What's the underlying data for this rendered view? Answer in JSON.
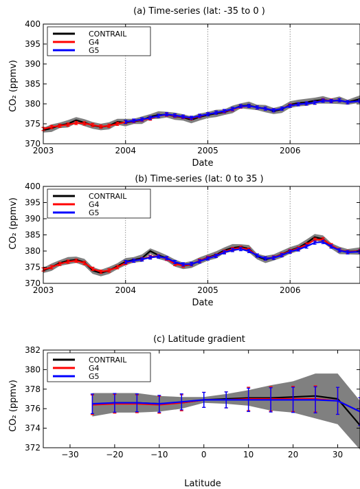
{
  "chart_data": [
    {
      "type": "line",
      "title": "(a) Time-series (lat: -35 to 0 )",
      "xlabel": "Date",
      "ylabel": "CO₂ (ppmv)",
      "xlim": [
        2003.0,
        2006.85
      ],
      "ylim": [
        370,
        400
      ],
      "xticks": [
        "2003",
        "2004",
        "2005",
        "2006"
      ],
      "yticks": [
        370,
        375,
        380,
        385,
        390,
        395,
        400
      ],
      "vlines": [
        2004,
        2005,
        2006
      ],
      "legend": "top-left",
      "legend_entries": [
        "CONTRAIL",
        "G4",
        "G5"
      ],
      "colors": {
        "CONTRAIL": "#000000",
        "G4": "#ff0000",
        "G5": "#0000ff",
        "band": "#808080"
      },
      "series": [
        {
          "name": "CONTRAIL",
          "x": [
            2003.0,
            2003.1,
            2003.2,
            2003.3,
            2003.4,
            2003.5,
            2003.6,
            2003.7,
            2003.8,
            2003.9,
            2004.0,
            2004.1,
            2004.2,
            2004.3,
            2004.4,
            2004.5,
            2004.6,
            2004.7,
            2004.8,
            2004.9,
            2005.0,
            2005.1,
            2005.2,
            2005.3,
            2005.4,
            2005.5,
            2005.6,
            2005.7,
            2005.8,
            2005.9,
            2006.0,
            2006.1,
            2006.2,
            2006.3,
            2006.4,
            2006.5,
            2006.6,
            2006.7,
            2006.85
          ],
          "y": [
            373.4,
            373.9,
            374.6,
            375.0,
            375.9,
            375.3,
            374.6,
            374.2,
            374.5,
            375.5,
            375.3,
            375.6,
            375.9,
            376.8,
            377.2,
            377.3,
            376.9,
            376.6,
            376.0,
            376.7,
            377.2,
            377.6,
            377.9,
            378.6,
            379.5,
            379.6,
            379.1,
            378.8,
            378.2,
            378.6,
            379.8,
            380.2,
            380.4,
            380.8,
            381.0,
            380.7,
            380.9,
            380.4,
            381.2
          ]
        },
        {
          "name": "G4",
          "x": [
            2003.0,
            2003.1,
            2003.2,
            2003.3,
            2003.4,
            2003.5,
            2003.6,
            2003.7,
            2003.8,
            2003.9,
            2004.0,
            2004.1,
            2004.2,
            2004.3,
            2004.4,
            2004.5,
            2004.6,
            2004.7,
            2004.8,
            2004.9,
            2005.0,
            2005.1,
            2005.2,
            2005.3,
            2005.4,
            2005.5,
            2005.6,
            2005.7,
            2005.8,
            2005.9,
            2006.0,
            2006.1,
            2006.2,
            2006.3,
            2006.4,
            2006.5,
            2006.6,
            2006.7,
            2006.85
          ],
          "y": [
            373.7,
            374.2,
            374.5,
            374.8,
            375.2,
            375.1,
            374.7,
            374.3,
            374.5,
            375.0,
            375.4,
            375.7,
            376.0,
            376.3,
            377.0,
            377.3,
            377.0,
            376.7,
            376.4,
            376.9,
            377.4,
            377.8,
            378.1,
            378.6,
            379.3,
            379.5,
            379.1,
            378.8,
            378.4,
            378.8,
            379.6,
            379.9,
            380.1,
            380.3,
            380.9,
            380.8,
            380.9,
            380.4,
            380.7
          ]
        },
        {
          "name": "G5",
          "x": [
            2004.0,
            2004.1,
            2004.2,
            2004.3,
            2004.4,
            2004.5,
            2004.6,
            2004.7,
            2004.8,
            2004.9,
            2005.0,
            2005.1,
            2005.2,
            2005.3,
            2005.4,
            2005.5,
            2005.6,
            2005.7,
            2005.8,
            2005.9,
            2006.0,
            2006.1,
            2006.2,
            2006.3,
            2006.4,
            2006.5,
            2006.6,
            2006.7,
            2006.85
          ],
          "y": [
            375.5,
            375.8,
            376.1,
            376.5,
            377.0,
            377.4,
            377.1,
            376.8,
            376.5,
            377.0,
            377.4,
            377.8,
            378.2,
            378.7,
            379.4,
            379.5,
            379.1,
            378.8,
            378.4,
            378.8,
            379.5,
            379.9,
            380.1,
            380.3,
            380.8,
            380.7,
            380.9,
            380.4,
            380.7
          ]
        }
      ]
    },
    {
      "type": "line",
      "title": "(b) Time-series (lat: 0 to 35 )",
      "xlabel": "Date",
      "ylabel": "CO₂ (ppmv)",
      "xlim": [
        2003.0,
        2006.85
      ],
      "ylim": [
        370,
        400
      ],
      "xticks": [
        "2003",
        "2004",
        "2005",
        "2006"
      ],
      "yticks": [
        370,
        375,
        380,
        385,
        390,
        395,
        400
      ],
      "vlines": [
        2004,
        2005,
        2006
      ],
      "legend": "top-left",
      "legend_entries": [
        "CONTRAIL",
        "G4",
        "G5"
      ],
      "colors": {
        "CONTRAIL": "#000000",
        "G4": "#ff0000",
        "G5": "#0000ff",
        "band": "#808080"
      },
      "series": [
        {
          "name": "CONTRAIL",
          "x": [
            2003.0,
            2003.1,
            2003.2,
            2003.3,
            2003.4,
            2003.5,
            2003.6,
            2003.7,
            2003.8,
            2003.9,
            2004.0,
            2004.1,
            2004.2,
            2004.3,
            2004.4,
            2004.5,
            2004.6,
            2004.7,
            2004.8,
            2004.9,
            2005.0,
            2005.1,
            2005.2,
            2005.3,
            2005.4,
            2005.5,
            2005.6,
            2005.7,
            2005.8,
            2005.9,
            2006.0,
            2006.1,
            2006.2,
            2006.3,
            2006.4,
            2006.5,
            2006.6,
            2006.7,
            2006.85
          ],
          "y": [
            374.0,
            375.0,
            376.3,
            377.0,
            377.3,
            376.5,
            374.0,
            373.2,
            374.0,
            375.3,
            376.7,
            377.3,
            377.8,
            380.0,
            378.7,
            377.8,
            376.3,
            375.4,
            375.8,
            377.0,
            378.0,
            378.8,
            380.2,
            381.0,
            381.3,
            380.7,
            378.3,
            377.4,
            378.0,
            379.0,
            380.2,
            381.0,
            382.5,
            384.3,
            383.7,
            381.6,
            380.2,
            379.8,
            380.0
          ]
        },
        {
          "name": "G4",
          "x": [
            2003.0,
            2003.1,
            2003.2,
            2003.3,
            2003.4,
            2003.5,
            2003.6,
            2003.7,
            2003.8,
            2003.9,
            2004.0,
            2004.1,
            2004.2,
            2004.3,
            2004.4,
            2004.5,
            2004.6,
            2004.7,
            2004.8,
            2004.9,
            2005.0,
            2005.1,
            2005.2,
            2005.3,
            2005.4,
            2005.5,
            2005.6,
            2005.7,
            2005.8,
            2005.9,
            2006.0,
            2006.1,
            2006.2,
            2006.3,
            2006.4,
            2006.5,
            2006.6,
            2006.7,
            2006.85
          ],
          "y": [
            374.3,
            375.0,
            376.0,
            376.7,
            377.0,
            376.3,
            374.5,
            373.6,
            374.0,
            375.0,
            376.3,
            377.0,
            377.5,
            378.2,
            378.4,
            377.6,
            376.0,
            375.5,
            375.9,
            377.0,
            377.9,
            378.6,
            379.8,
            380.6,
            381.0,
            380.4,
            378.6,
            377.7,
            378.0,
            378.9,
            380.0,
            380.8,
            382.0,
            383.5,
            383.6,
            381.8,
            380.3,
            379.7,
            380.0
          ]
        },
        {
          "name": "G5",
          "x": [
            2004.0,
            2004.1,
            2004.2,
            2004.3,
            2004.4,
            2004.5,
            2004.6,
            2004.7,
            2004.8,
            2004.9,
            2005.0,
            2005.1,
            2005.2,
            2005.3,
            2005.4,
            2005.5,
            2005.6,
            2005.7,
            2005.8,
            2005.9,
            2006.0,
            2006.1,
            2006.2,
            2006.3,
            2006.4,
            2006.5,
            2006.6,
            2006.7,
            2006.85
          ],
          "y": [
            376.6,
            377.0,
            377.4,
            378.0,
            378.3,
            377.8,
            376.6,
            375.9,
            376.0,
            376.8,
            377.7,
            378.5,
            379.6,
            380.3,
            380.6,
            380.0,
            378.6,
            377.7,
            377.9,
            378.7,
            379.8,
            380.5,
            381.4,
            382.6,
            382.8,
            381.4,
            380.2,
            379.6,
            379.8
          ]
        }
      ]
    },
    {
      "type": "line",
      "title": "(c) Latitude gradient",
      "xlabel": "Latitude",
      "ylabel": "CO₂ (ppmv)",
      "xlim": [
        -36,
        35
      ],
      "ylim": [
        372,
        382
      ],
      "xticks": [
        "−30",
        "−20",
        "−10",
        "0",
        "10",
        "20",
        "30"
      ],
      "yticks": [
        372,
        374,
        376,
        378,
        380,
        382
      ],
      "legend": "top-left",
      "legend_entries": [
        "CONTRAIL",
        "G4",
        "G5"
      ],
      "colors": {
        "CONTRAIL": "#000000",
        "G4": "#ff0000",
        "G5": "#0000ff",
        "band": "#808080"
      },
      "series": [
        {
          "name": "CONTRAIL",
          "x": [
            -25,
            -20,
            -15,
            -10,
            -5,
            0,
            5,
            10,
            15,
            20,
            25,
            30,
            35
          ],
          "y": [
            376.4,
            376.6,
            376.6,
            376.5,
            376.6,
            376.9,
            377.0,
            377.1,
            377.1,
            377.2,
            377.3,
            377.0,
            374.3
          ]
        },
        {
          "name": "G4",
          "x": [
            -25,
            -20,
            -15,
            -10,
            -5,
            0,
            5,
            10,
            15,
            20,
            25,
            30,
            35
          ],
          "y": [
            376.4,
            376.5,
            376.5,
            376.4,
            376.6,
            376.9,
            376.9,
            377.0,
            377.0,
            377.0,
            377.0,
            376.8,
            375.7
          ]
        },
        {
          "name": "G5",
          "x": [
            -25,
            -20,
            -15,
            -10,
            -5,
            0,
            5,
            10,
            15,
            20,
            25,
            30,
            35
          ],
          "y": [
            376.5,
            376.6,
            376.6,
            376.5,
            376.7,
            376.9,
            376.9,
            376.9,
            376.9,
            376.9,
            376.9,
            376.8,
            375.7
          ]
        }
      ]
    }
  ]
}
